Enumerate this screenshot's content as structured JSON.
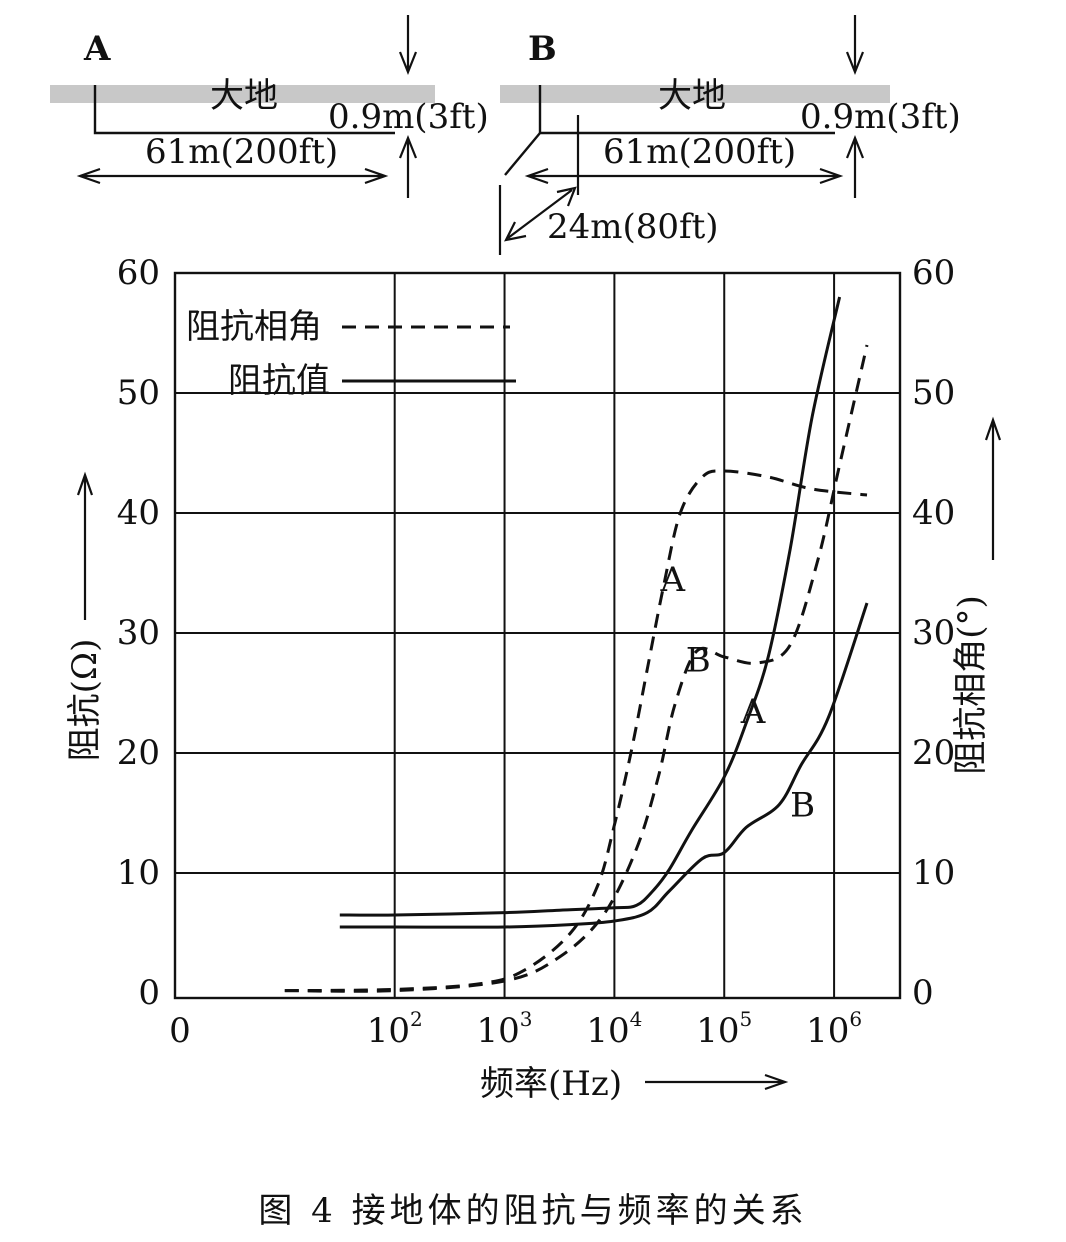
{
  "diagrams": {
    "A": {
      "label": "A",
      "ground_label": "大地",
      "depth_label": "0.9m(3ft)",
      "length_label": "61m(200ft)"
    },
    "B": {
      "label": "B",
      "ground_label": "大地",
      "depth_label": "0.9m(3ft)",
      "length_label": "61m(200ft)",
      "branch_label": "24m(80ft)"
    }
  },
  "chart_data": {
    "type": "line",
    "x_scale": "log",
    "xlabel": "频率(Hz)",
    "ylabel_left": "阻抗(Ω)",
    "ylabel_right": "阻抗相角(°)",
    "ylim": [
      0,
      60
    ],
    "y_ticks_left": [
      "60",
      "50",
      "40",
      "30",
      "20",
      "10",
      "0"
    ],
    "y_ticks_right": [
      "60",
      "50",
      "40",
      "30",
      "20",
      "10",
      "0"
    ],
    "x_origin_label": "0",
    "x_ticks": [
      {
        "base": "10",
        "exp": "2"
      },
      {
        "base": "10",
        "exp": "3"
      },
      {
        "base": "10",
        "exp": "4"
      },
      {
        "base": "10",
        "exp": "5"
      },
      {
        "base": "10",
        "exp": "6"
      }
    ],
    "grid": true,
    "legend": [
      {
        "label": "阻抗相角",
        "style": "dashed"
      },
      {
        "label": "阻抗值",
        "style": "solid"
      }
    ],
    "series": [
      {
        "name": "阻抗值 A",
        "style": "solid",
        "label": "A",
        "points": [
          [
            1.5,
            6.5
          ],
          [
            2.0,
            6.5
          ],
          [
            3.0,
            6.7
          ],
          [
            3.5,
            6.9
          ],
          [
            4.0,
            7.1
          ],
          [
            4.2,
            7.3
          ],
          [
            4.35,
            8.5
          ],
          [
            4.5,
            10.3
          ],
          [
            4.7,
            13.5
          ],
          [
            5.0,
            18.0
          ],
          [
            5.2,
            22.5
          ],
          [
            5.4,
            28.0
          ],
          [
            5.6,
            37.0
          ],
          [
            5.8,
            48.0
          ],
          [
            6.05,
            58.0
          ]
        ]
      },
      {
        "name": "阻抗值 B",
        "style": "solid",
        "label": "B",
        "points": [
          [
            1.5,
            5.5
          ],
          [
            2.0,
            5.5
          ],
          [
            3.0,
            5.5
          ],
          [
            3.6,
            5.7
          ],
          [
            4.0,
            6.0
          ],
          [
            4.3,
            6.7
          ],
          [
            4.5,
            8.5
          ],
          [
            4.8,
            11.2
          ],
          [
            5.0,
            11.7
          ],
          [
            5.2,
            13.8
          ],
          [
            5.5,
            15.7
          ],
          [
            5.7,
            19.0
          ],
          [
            5.95,
            23.0
          ],
          [
            6.3,
            32.5
          ]
        ]
      },
      {
        "name": "阻抗相角 A",
        "style": "dashed",
        "label": "A",
        "points": [
          [
            1.0,
            0.2
          ],
          [
            2.0,
            0.3
          ],
          [
            2.8,
            0.8
          ],
          [
            3.2,
            2.0
          ],
          [
            3.6,
            5.0
          ],
          [
            3.85,
            9.0
          ],
          [
            4.0,
            14.0
          ],
          [
            4.15,
            20.0
          ],
          [
            4.3,
            27.0
          ],
          [
            4.45,
            34.0
          ],
          [
            4.6,
            40.0
          ],
          [
            4.8,
            43.0
          ],
          [
            5.0,
            43.5
          ],
          [
            5.4,
            43.0
          ],
          [
            5.8,
            42.0
          ],
          [
            6.3,
            41.5
          ]
        ]
      },
      {
        "name": "阻抗相角 B",
        "style": "dashed",
        "label": "B",
        "points": [
          [
            1.0,
            0.2
          ],
          [
            2.0,
            0.2
          ],
          [
            3.0,
            1.0
          ],
          [
            3.5,
            3.0
          ],
          [
            3.9,
            6.5
          ],
          [
            4.2,
            12.0
          ],
          [
            4.4,
            18.0
          ],
          [
            4.55,
            24.0
          ],
          [
            4.75,
            28.5
          ],
          [
            5.0,
            28.0
          ],
          [
            5.3,
            27.5
          ],
          [
            5.6,
            29.0
          ],
          [
            5.85,
            36.0
          ],
          [
            6.05,
            44.0
          ],
          [
            6.3,
            54.0
          ]
        ]
      }
    ]
  },
  "caption": {
    "text": "图 4 接地体的阻抗与频率的关系"
  }
}
